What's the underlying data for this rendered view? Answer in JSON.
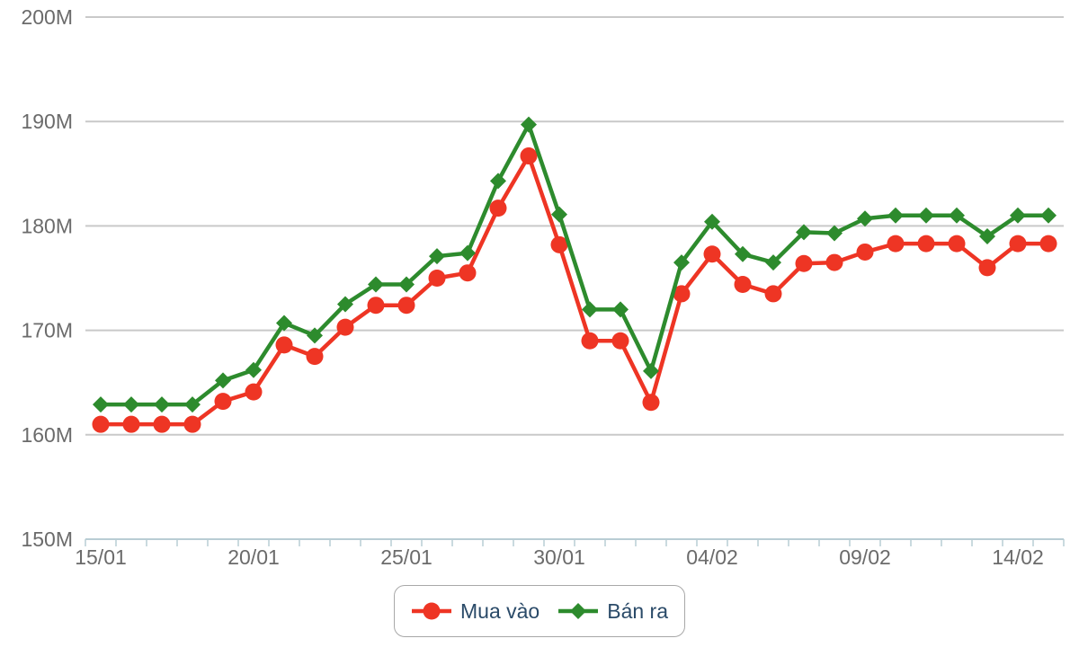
{
  "chart_data": {
    "type": "line",
    "x": [
      "15/01",
      "16/01",
      "17/01",
      "18/01",
      "19/01",
      "20/01",
      "21/01",
      "22/01",
      "23/01",
      "24/01",
      "25/01",
      "26/01",
      "27/01",
      "28/01",
      "29/01",
      "30/01",
      "31/01",
      "01/02",
      "02/02",
      "03/02",
      "04/02",
      "05/02",
      "06/02",
      "07/02",
      "08/02",
      "09/02",
      "10/02",
      "11/02",
      "12/02",
      "13/02",
      "14/02",
      "15/02"
    ],
    "series": [
      {
        "name": "Mua vào",
        "marker": "circle",
        "color": "#ee3524",
        "values": [
          161.0,
          161.0,
          161.0,
          161.0,
          163.2,
          164.1,
          168.6,
          167.5,
          170.3,
          172.4,
          172.4,
          175.0,
          175.5,
          181.7,
          186.7,
          178.2,
          169.0,
          169.0,
          163.1,
          173.5,
          177.3,
          174.4,
          173.5,
          176.4,
          176.5,
          177.5,
          178.3,
          178.3,
          178.3,
          176.0,
          178.3,
          178.3
        ]
      },
      {
        "name": "Bán ra",
        "marker": "diamond",
        "color": "#2d8b2d",
        "values": [
          162.9,
          162.9,
          162.9,
          162.9,
          165.2,
          166.2,
          170.7,
          169.5,
          172.5,
          174.4,
          174.4,
          177.1,
          177.4,
          184.3,
          189.7,
          181.1,
          172.0,
          172.0,
          166.1,
          176.5,
          180.4,
          177.3,
          176.5,
          179.4,
          179.3,
          180.7,
          181.0,
          181.0,
          181.0,
          179.0,
          181.0,
          181.0
        ]
      }
    ],
    "title": "",
    "xlabel": "",
    "ylabel": "",
    "ylim": [
      150,
      200
    ],
    "y_tick_step": 10,
    "y_tick_labels": [
      "150M",
      "160M",
      "170M",
      "180M",
      "190M",
      "200M"
    ],
    "x_tick_labels": [
      "15/01",
      "20/01",
      "25/01",
      "30/01",
      "04/02",
      "09/02",
      "14/02"
    ],
    "x_tick_every": 5,
    "grid": "horizontal",
    "legend_position": "bottom-center"
  },
  "colors": {
    "grid": "#c9c9c9",
    "axis_line": "#b9cdd4",
    "tick_text": "#6b6b6b",
    "legend_text": "#2a4a68",
    "legend_border": "#a8a8a8",
    "background": "#ffffff",
    "buy_series": "#ee3524",
    "sell_series": "#2d8b2d"
  }
}
